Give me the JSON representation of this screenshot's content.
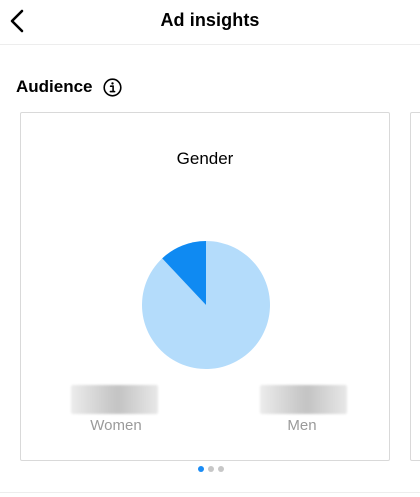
{
  "header": {
    "title": "Ad insights",
    "back_icon": "chevron-left-icon"
  },
  "audience": {
    "section_title": "Audience",
    "info_icon": "info-icon"
  },
  "gender_card": {
    "title": "Gender",
    "legend": [
      "Women",
      "Men"
    ]
  },
  "chart_data": {
    "type": "pie",
    "title": "Gender",
    "labels": [
      "Women",
      "Men"
    ],
    "values": [
      88,
      12
    ],
    "colors": [
      "#b4dcfb",
      "#0f8af2"
    ],
    "value_labels_hidden": true
  },
  "carousel": {
    "page_count": 3,
    "active_page": 1
  },
  "colors": {
    "accent": "#1a8cf5",
    "divider": "#ededed",
    "card_border": "#d9d9d9",
    "legend_text": "#9a9a9a"
  }
}
